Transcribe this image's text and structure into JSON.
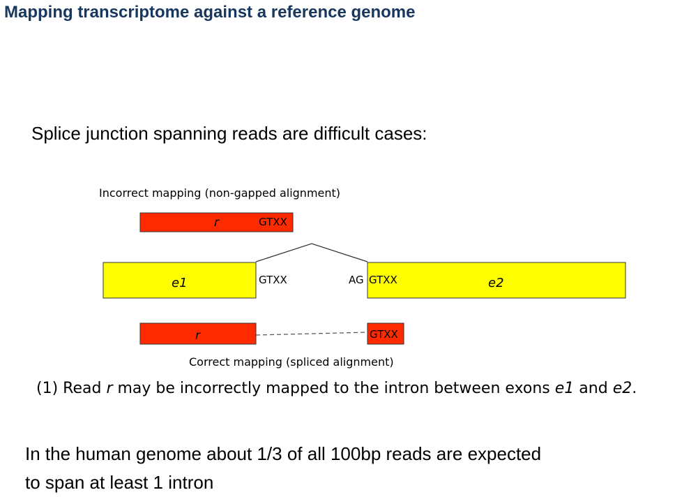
{
  "title": "Mapping transcriptome against a reference genome",
  "subtitle": "Splice junction spanning reads are difficult cases:",
  "diagram": {
    "incorrect_label": "Incorrect mapping (non-gapped alignment)",
    "correct_label": "Correct mapping (spliced alignment)",
    "read_name": "r",
    "exon1_name": "e1",
    "exon2_name": "e2",
    "motif_gtxx": "GTXX",
    "motif_ag": "AG",
    "colors": {
      "read": "#ff2a00",
      "exon": "#ffff00",
      "outline": "#333333"
    }
  },
  "caption": {
    "p1": "(1) Read ",
    "r": "r",
    "p2": " may be incorrectly mapped to the intron between exons ",
    "e1": "e1",
    "p3": " and ",
    "e2": "e2",
    "p4": "."
  },
  "footer": {
    "line1": "In the human genome about 1/3 of all 100bp reads are expected",
    "line2": "to span at least 1 intron"
  }
}
